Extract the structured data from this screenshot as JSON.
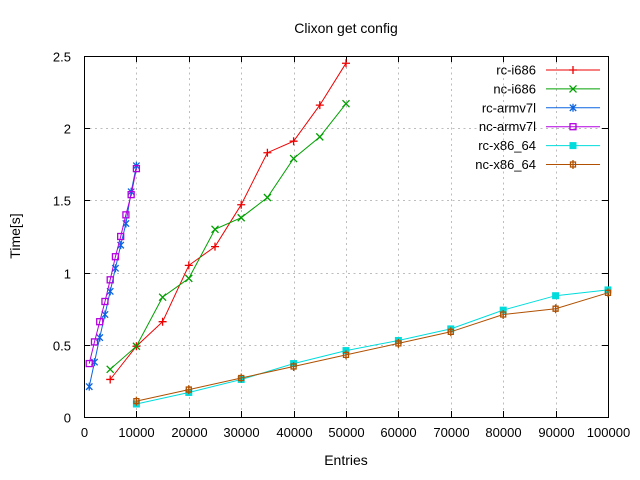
{
  "window": {
    "background": "#ffffff"
  },
  "chart_data": {
    "type": "line",
    "title": "Clixon get config",
    "xlabel": "Entries",
    "ylabel": "Time[s]",
    "xlim": [
      0,
      100000
    ],
    "ylim": [
      0,
      2.5
    ],
    "x_ticks": [
      0,
      10000,
      20000,
      30000,
      40000,
      50000,
      60000,
      70000,
      80000,
      90000,
      100000
    ],
    "y_ticks": [
      0,
      0.5,
      1,
      1.5,
      2,
      2.5
    ],
    "grid": true,
    "grid_color": "#bdbdbd",
    "border_color": "#000000",
    "legend_position": "top-right-inside",
    "series": [
      {
        "name": "rc-i686",
        "color": "#ee0000",
        "marker": "plus",
        "x": [
          5000,
          10000,
          15000,
          20000,
          25000,
          30000,
          35000,
          40000,
          45000,
          50000
        ],
        "y": [
          0.26,
          0.49,
          0.66,
          1.05,
          1.18,
          1.47,
          1.83,
          1.91,
          2.16,
          2.45
        ]
      },
      {
        "name": "nc-i686",
        "color": "#00a000",
        "marker": "cross",
        "x": [
          5000,
          10000,
          15000,
          20000,
          25000,
          30000,
          35000,
          40000,
          45000,
          50000
        ],
        "y": [
          0.33,
          0.49,
          0.83,
          0.96,
          1.3,
          1.38,
          1.52,
          1.79,
          1.94,
          2.17
        ]
      },
      {
        "name": "rc-armv7l",
        "color": "#0c63e0",
        "marker": "asterisk",
        "x": [
          1000,
          2000,
          3000,
          4000,
          5000,
          6000,
          7000,
          8000,
          9000,
          10000
        ],
        "y": [
          0.21,
          0.38,
          0.55,
          0.71,
          0.87,
          1.03,
          1.19,
          1.34,
          1.56,
          1.74
        ]
      },
      {
        "name": "nc-armv7l",
        "color": "#b200e0",
        "marker": "square-open",
        "x": [
          1000,
          2000,
          3000,
          4000,
          5000,
          6000,
          7000,
          8000,
          9000,
          10000
        ],
        "y": [
          0.37,
          0.52,
          0.66,
          0.8,
          0.95,
          1.11,
          1.25,
          1.4,
          1.54,
          1.72
        ]
      },
      {
        "name": "rc-x86_64",
        "color": "#00dcdc",
        "marker": "square-filled",
        "x": [
          10000,
          20000,
          30000,
          40000,
          50000,
          60000,
          70000,
          80000,
          90000,
          100000
        ],
        "y": [
          0.09,
          0.17,
          0.26,
          0.37,
          0.46,
          0.53,
          0.61,
          0.74,
          0.84,
          0.88
        ]
      },
      {
        "name": "nc-x86_64",
        "color": "#b05000",
        "marker": "square-vline",
        "x": [
          10000,
          20000,
          30000,
          40000,
          50000,
          60000,
          70000,
          80000,
          90000,
          100000
        ],
        "y": [
          0.11,
          0.19,
          0.27,
          0.35,
          0.43,
          0.51,
          0.59,
          0.71,
          0.75,
          0.86
        ]
      }
    ]
  }
}
